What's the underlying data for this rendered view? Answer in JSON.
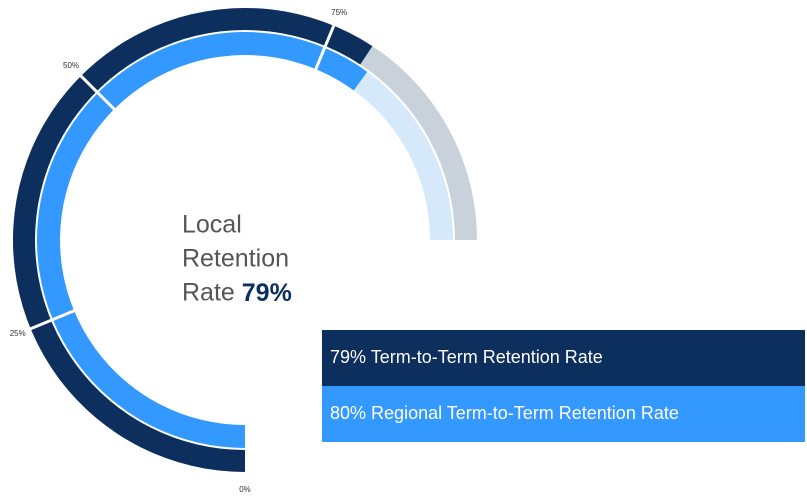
{
  "chart_data": {
    "type": "radial-bar",
    "center_label": "Local Retention Rate",
    "ylim": [
      0,
      100
    ],
    "yticks": [
      {
        "value": 0,
        "label": "0%"
      },
      {
        "value": 25,
        "label": "25%"
      },
      {
        "value": 50,
        "label": "50%"
      },
      {
        "value": 75,
        "label": "75%"
      }
    ],
    "track_colors": [
      "#c9d1db",
      "#d6e9fb"
    ],
    "series": [
      {
        "name": "Term-to-Term Retention Rate",
        "color": "#0c2f5e",
        "values": [
          79
        ],
        "value_labels": [
          "79%"
        ]
      },
      {
        "name": "Regional Term-to-Term Retention Rate",
        "color": "#3399ff",
        "values": [
          80
        ],
        "value_labels": [
          "80%"
        ]
      }
    ]
  }
}
